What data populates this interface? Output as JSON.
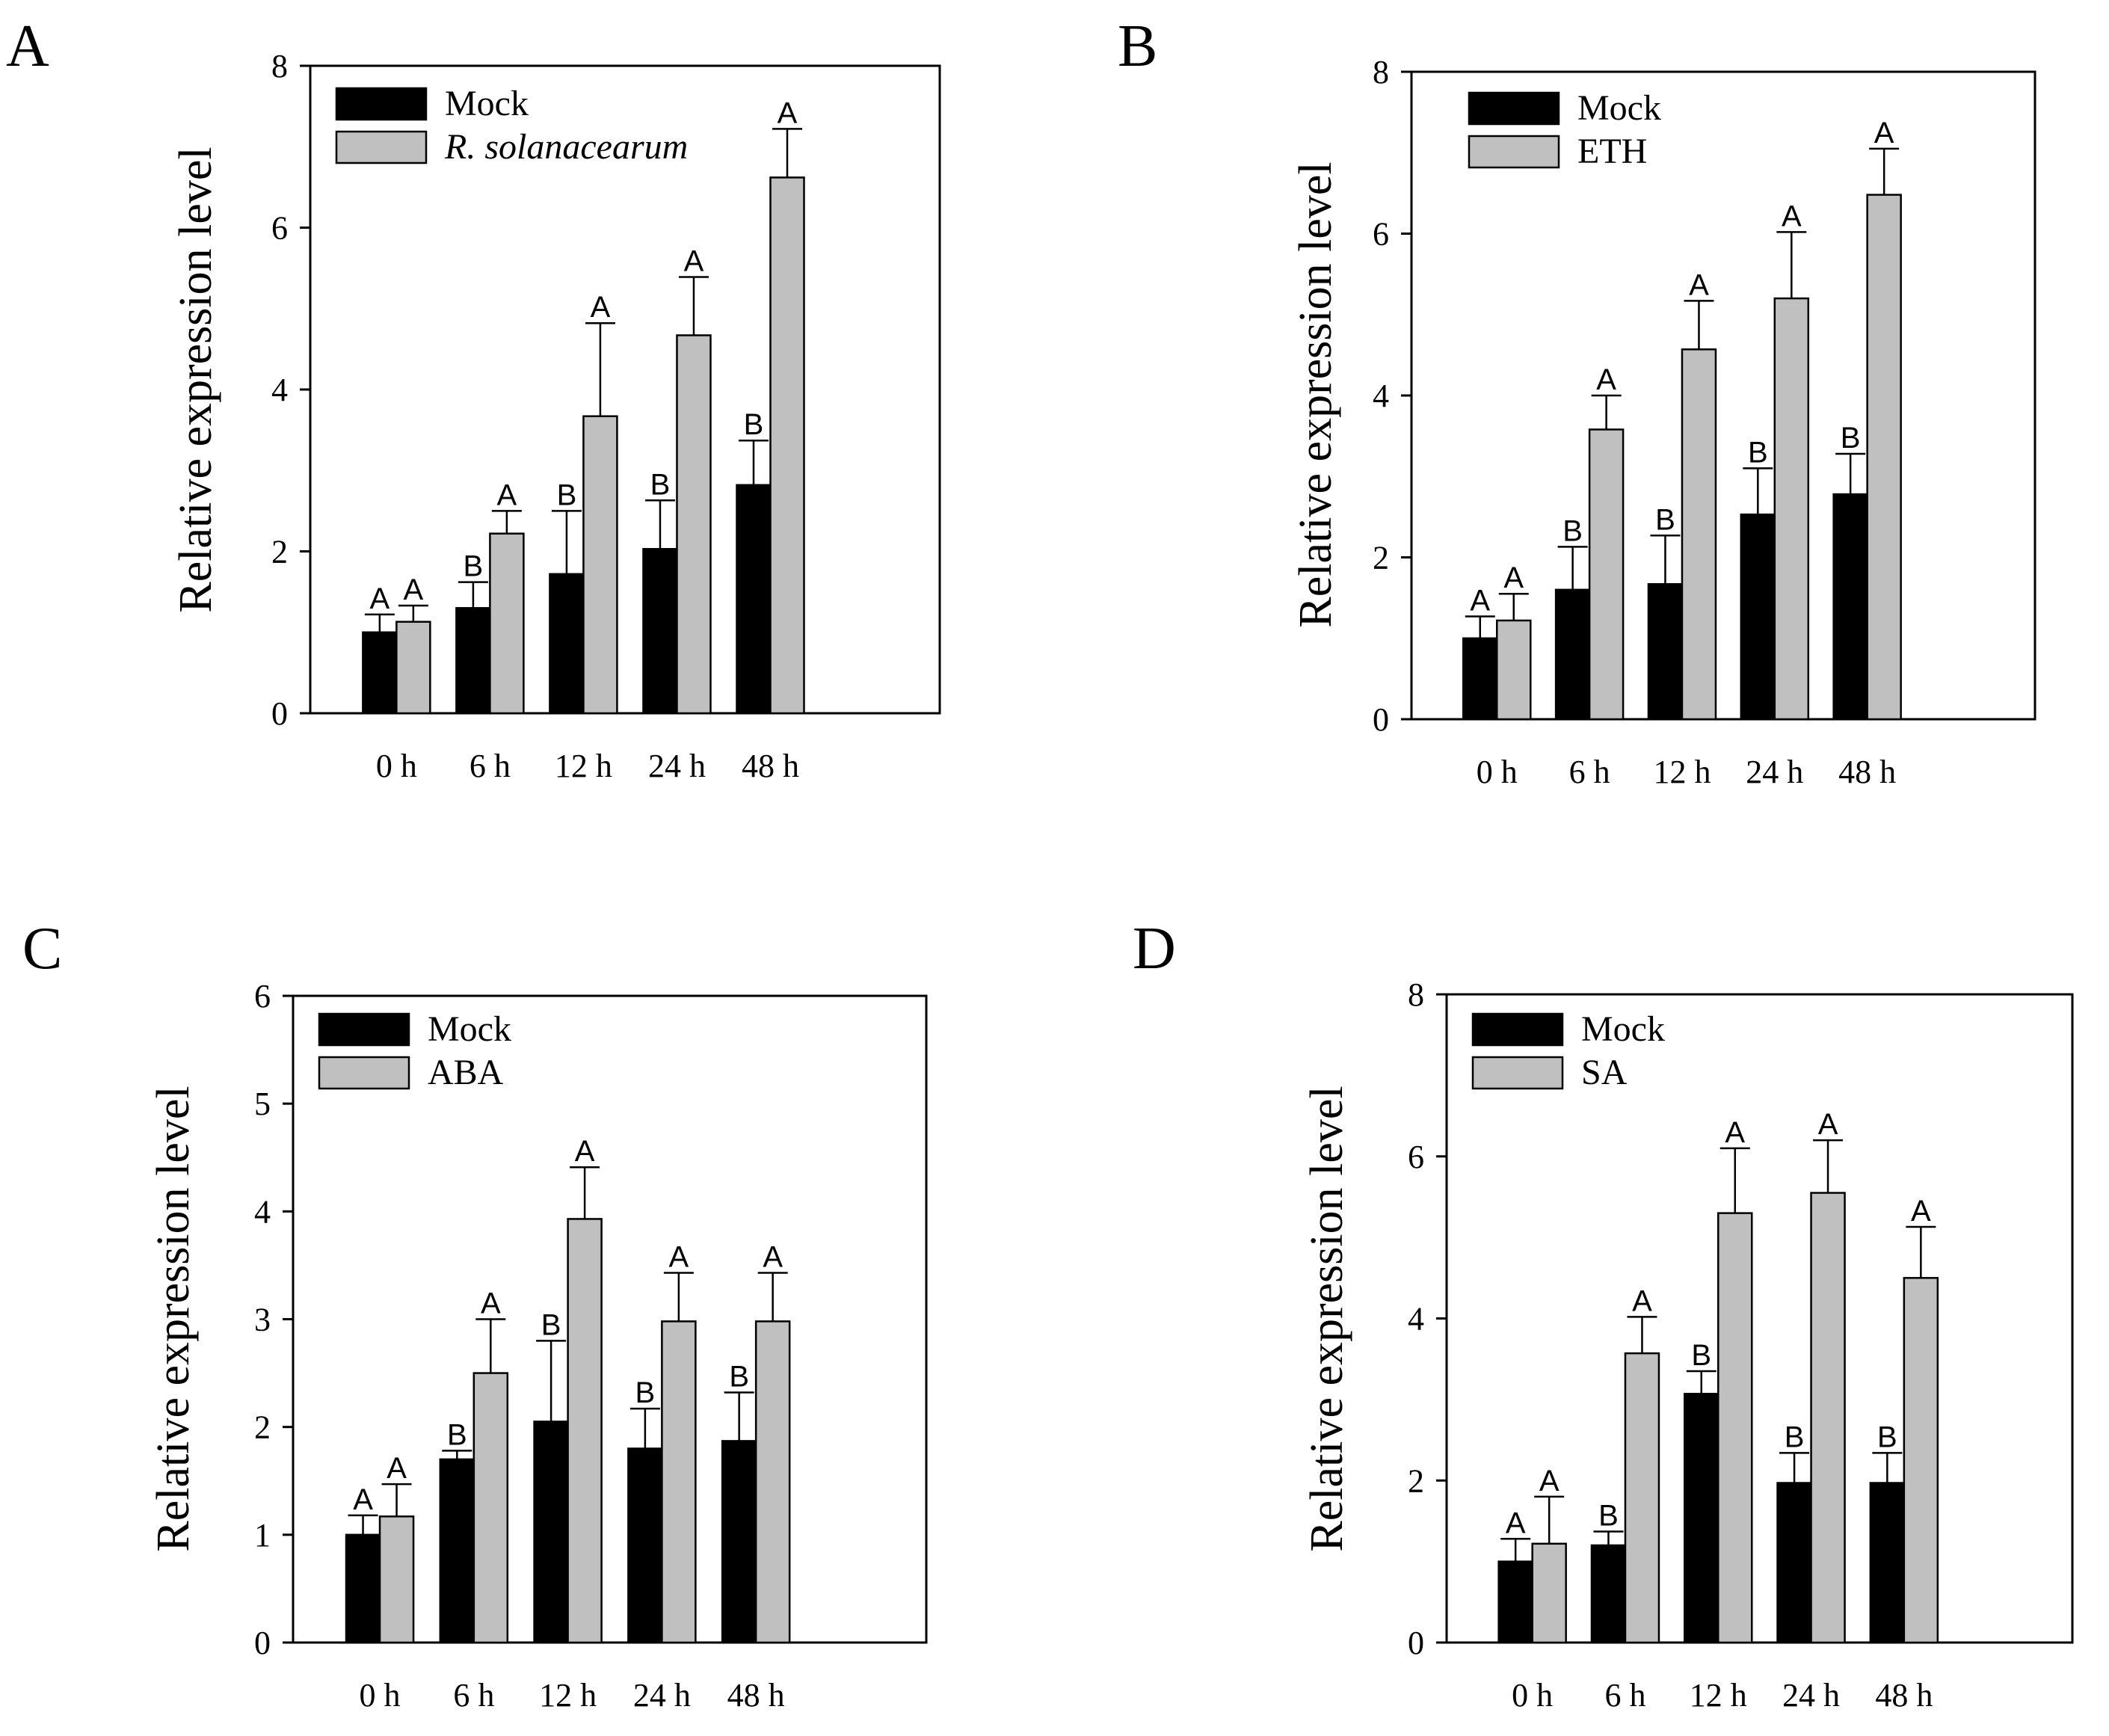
{
  "chart_data": [
    {
      "panel": "A",
      "type": "bar",
      "categories": [
        "0 h",
        "6 h",
        "12 h",
        "24 h",
        "48 h"
      ],
      "ylabel": "Relative expression level",
      "ylim": [
        0,
        8
      ],
      "yticks": [
        0,
        2,
        4,
        6,
        8
      ],
      "legend_position": "top-left",
      "series": [
        {
          "name": "Mock",
          "italic": false,
          "color": "#000000",
          "values": [
            1.0,
            1.3,
            1.72,
            2.03,
            2.82
          ],
          "errors": [
            0.22,
            0.32,
            0.78,
            0.6,
            0.55
          ],
          "labels": [
            "A",
            "B",
            "B",
            "B",
            "B"
          ]
        },
        {
          "name": "R. solanacearum",
          "italic": true,
          "color": "#c0c0c0",
          "values": [
            1.13,
            2.22,
            3.67,
            4.67,
            6.62
          ],
          "errors": [
            0.2,
            0.28,
            1.15,
            0.72,
            0.6
          ],
          "labels": [
            "A",
            "A",
            "A",
            "A",
            "A"
          ]
        }
      ]
    },
    {
      "panel": "B",
      "type": "bar",
      "categories": [
        "0 h",
        "6 h",
        "12 h",
        "24 h",
        "48 h"
      ],
      "ylabel": "Relative expression level",
      "ylim": [
        0,
        8
      ],
      "yticks": [
        0,
        2,
        4,
        6,
        8
      ],
      "legend_position": "top-left",
      "series": [
        {
          "name": "Mock",
          "italic": false,
          "color": "#000000",
          "values": [
            1.0,
            1.6,
            1.67,
            2.53,
            2.78
          ],
          "errors": [
            0.27,
            0.53,
            0.6,
            0.57,
            0.5
          ],
          "labels": [
            "A",
            "B",
            "B",
            "B",
            "B"
          ]
        },
        {
          "name": "ETH",
          "italic": false,
          "color": "#c0c0c0",
          "values": [
            1.22,
            3.58,
            4.57,
            5.2,
            6.48
          ],
          "errors": [
            0.33,
            0.42,
            0.6,
            0.82,
            0.57
          ],
          "labels": [
            "A",
            "A",
            "A",
            "A",
            "A"
          ]
        }
      ]
    },
    {
      "panel": "C",
      "type": "bar",
      "categories": [
        "0 h",
        "6 h",
        "12 h",
        "24 h",
        "48 h"
      ],
      "ylabel": "Relative expression level",
      "ylim": [
        0,
        6
      ],
      "yticks": [
        0,
        1,
        2,
        3,
        4,
        5,
        6
      ],
      "legend_position": "top-left",
      "series": [
        {
          "name": "Mock",
          "italic": false,
          "color": "#000000",
          "values": [
            1.0,
            1.7,
            2.05,
            1.8,
            1.87
          ],
          "errors": [
            0.18,
            0.08,
            0.75,
            0.37,
            0.45
          ],
          "labels": [
            "A",
            "B",
            "B",
            "B",
            "B"
          ]
        },
        {
          "name": "ABA",
          "italic": false,
          "color": "#c0c0c0",
          "values": [
            1.17,
            2.5,
            3.93,
            2.98,
            2.98
          ],
          "errors": [
            0.3,
            0.5,
            0.48,
            0.45,
            0.45
          ],
          "labels": [
            "A",
            "A",
            "A",
            "A",
            "A"
          ]
        }
      ]
    },
    {
      "panel": "D",
      "type": "bar",
      "categories": [
        "0 h",
        "6 h",
        "12 h",
        "24 h",
        "48 h"
      ],
      "ylabel": "Relative expression level",
      "ylim": [
        0,
        8
      ],
      "yticks": [
        0,
        2,
        4,
        6,
        8
      ],
      "legend_position": "top-left",
      "series": [
        {
          "name": "Mock",
          "italic": false,
          "color": "#000000",
          "values": [
            1.0,
            1.2,
            3.07,
            1.97,
            1.97
          ],
          "errors": [
            0.28,
            0.17,
            0.28,
            0.37,
            0.37
          ],
          "labels": [
            "A",
            "B",
            "B",
            "B",
            "B"
          ]
        },
        {
          "name": "SA",
          "italic": false,
          "color": "#c0c0c0",
          "values": [
            1.22,
            3.57,
            5.3,
            5.55,
            4.5
          ],
          "errors": [
            0.58,
            0.45,
            0.8,
            0.65,
            0.63
          ],
          "labels": [
            "A",
            "A",
            "A",
            "A",
            "A"
          ]
        }
      ]
    }
  ]
}
